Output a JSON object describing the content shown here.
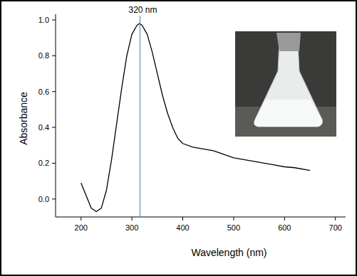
{
  "chart_data": {
    "type": "line",
    "x_label": "Wavelength (nm)",
    "y_label": "Absorbance",
    "annotation": {
      "text": "320 nm",
      "x": 316
    },
    "x": [
      200,
      210,
      220,
      230,
      240,
      250,
      260,
      270,
      280,
      290,
      300,
      310,
      315,
      320,
      330,
      340,
      350,
      360,
      370,
      380,
      390,
      400,
      420,
      440,
      460,
      480,
      500,
      520,
      540,
      560,
      580,
      600,
      620,
      650
    ],
    "series": [
      {
        "name": "Absorbance",
        "color": "#000000",
        "values": [
          0.09,
          0.02,
          -0.05,
          -0.07,
          -0.05,
          0.05,
          0.22,
          0.42,
          0.62,
          0.8,
          0.92,
          0.97,
          0.98,
          0.97,
          0.92,
          0.82,
          0.7,
          0.58,
          0.48,
          0.4,
          0.34,
          0.31,
          0.29,
          0.28,
          0.27,
          0.25,
          0.23,
          0.22,
          0.21,
          0.2,
          0.19,
          0.18,
          0.175,
          0.16
        ]
      }
    ],
    "xlim": [
      150,
      720
    ],
    "ylim": [
      -0.1,
      1.0
    ],
    "xticks": [
      200,
      300,
      400,
      500,
      600,
      700
    ],
    "yticks": [
      {
        "value": 0,
        "label": "0.0"
      },
      0.2,
      0.4,
      0.6,
      0.8,
      {
        "value": 1,
        "label": "1.0"
      }
    ],
    "grid": false
  }
}
